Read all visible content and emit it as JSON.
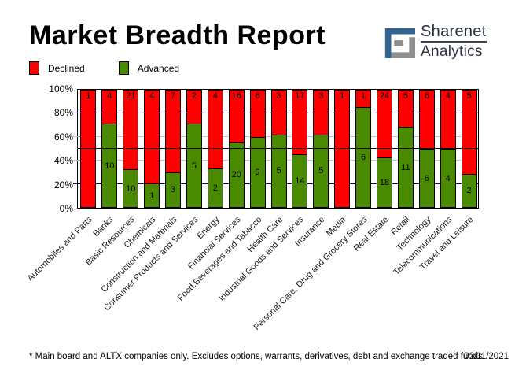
{
  "header": {
    "title": "Market Breadth Report",
    "logo": {
      "line1": "Sharenet",
      "line2": "Analytics",
      "blue": "#31648f",
      "gray": "#8f8f8f"
    }
  },
  "legend": [
    {
      "label": "Declined",
      "color": "#ff0000"
    },
    {
      "label": "Advanced",
      "color": "#4a8a00"
    }
  ],
  "chart_data": {
    "type": "bar",
    "stacked": true,
    "normalized": "percent_of_total",
    "categories": [
      "Automobiles and Parts",
      "Banks",
      "Basic Resources",
      "Chemicals",
      "Construction and Materials",
      "Consumer Products and Services",
      "Energy",
      "Financial Services",
      "Food,Beverages and Tabacco",
      "Health Care",
      "Industrial Goods and Services",
      "Insurance",
      "Media",
      "Personal Care, Drug and Grocery Stores",
      "Real Estate",
      "Retail",
      "Technology",
      "Telecommunications",
      "Travel and Leisure"
    ],
    "series": [
      {
        "name": "Declined",
        "color": "#ff0000",
        "values": [
          1,
          4,
          21,
          4,
          7,
          2,
          4,
          16,
          6,
          3,
          17,
          3,
          1,
          1,
          24,
          5,
          6,
          4,
          5
        ]
      },
      {
        "name": "Advanced",
        "color": "#4a8a00",
        "values": [
          0,
          10,
          10,
          1,
          3,
          5,
          2,
          20,
          9,
          5,
          14,
          5,
          0,
          6,
          18,
          11,
          6,
          4,
          2
        ]
      }
    ],
    "ylim": [
      0,
      100
    ],
    "yticks": [
      "100%",
      "80%",
      "60%",
      "40%",
      "20%",
      "0%"
    ],
    "gridlines": [
      {
        "percent": 80,
        "color": "#000080",
        "over_bars": false
      },
      {
        "percent": 60,
        "color": "#c4c4c4",
        "over_bars": false
      },
      {
        "percent": 50,
        "color": "#000000",
        "over_bars": true
      },
      {
        "percent": 40,
        "color": "#c4c4c4",
        "over_bars": false
      },
      {
        "percent": 20,
        "color": "#000080",
        "over_bars": false
      }
    ],
    "legend_position": "top-left",
    "bar_value_labels": true
  },
  "footer": {
    "note": "* Main board and ALTX companies only. Excludes options, warrants, derivatives, debt and exchange traded funds",
    "date": "02/11/2021"
  }
}
